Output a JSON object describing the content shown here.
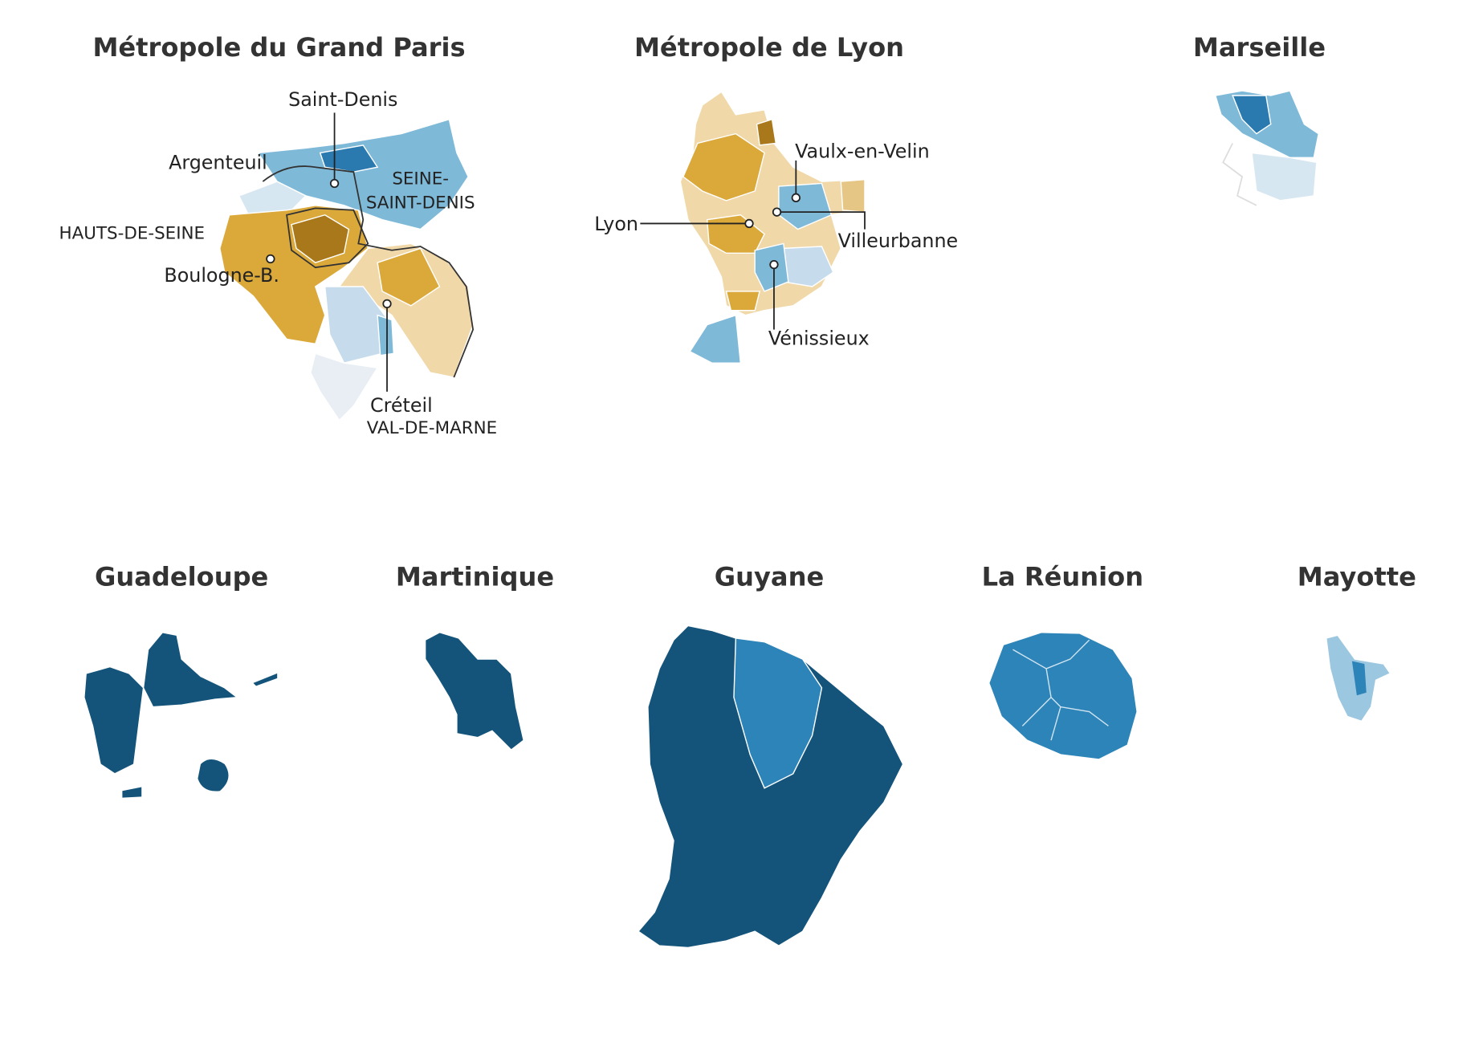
{
  "maps": [
    {
      "title": "Métropole du Grand Paris",
      "labels": [
        "Saint-Denis",
        "Argenteuil",
        "SEINE-",
        "SAINT-DENIS",
        "HAUTS-DE-SEINE",
        "Boulogne-B.",
        "Créteil",
        "VAL-DE-MARNE"
      ]
    },
    {
      "title": "Métropole de Lyon",
      "labels": [
        "Vaulx-en-Velin",
        "Lyon",
        "Villeurbanne",
        "Vénissieux"
      ]
    },
    {
      "title": "Marseille"
    },
    {
      "title": "Guadeloupe"
    },
    {
      "title": "Martinique"
    },
    {
      "title": "Guyane"
    },
    {
      "title": "La Réunion"
    },
    {
      "title": "Mayotte"
    }
  ]
}
